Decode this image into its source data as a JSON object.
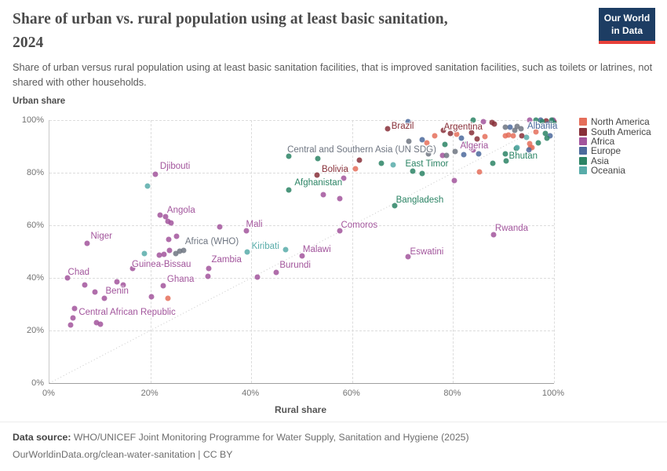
{
  "header": {
    "title_line1": "Share of urban vs. rural population using at least basic sanitation,",
    "title_line2": "2024",
    "logo_line1": "Our World",
    "logo_line2": "in Data"
  },
  "subtitle": "Share of urban versus rural population using at least basic sanitation facilities, that is improved sanitation facilities, such as toilets or latrines, not shared with other households.",
  "chart_data": {
    "type": "scatter",
    "xlabel": "Rural share",
    "ylabel": "Urban share",
    "xlim": [
      0,
      100
    ],
    "ylim": [
      0,
      100
    ],
    "grid": true,
    "gridlines": [
      20,
      40,
      60,
      80,
      100
    ],
    "diagonal_line": true,
    "x_ticks": [
      {
        "v": 0,
        "label": "0%"
      },
      {
        "v": 20,
        "label": "20%"
      },
      {
        "v": 40,
        "label": "40%"
      },
      {
        "v": 60,
        "label": "60%"
      },
      {
        "v": 80,
        "label": "80%"
      },
      {
        "v": 100,
        "label": "100%"
      }
    ],
    "y_ticks": [
      {
        "v": 0,
        "label": "0%"
      },
      {
        "v": 20,
        "label": "20%"
      },
      {
        "v": 40,
        "label": "40%"
      },
      {
        "v": 60,
        "label": "60%"
      },
      {
        "v": 80,
        "label": "80%"
      },
      {
        "v": 100,
        "label": "100%"
      }
    ],
    "series": [
      {
        "id": "northAmerica",
        "name": "North America",
        "color": "#E56E5A",
        "points": [
          [
            23.5,
            32.2
          ],
          [
            60.6,
            81.5
          ],
          [
            85.2,
            80.3
          ],
          [
            76.4,
            94
          ],
          [
            80.7,
            94.6
          ],
          [
            86.3,
            93.7
          ],
          [
            74.8,
            91.3
          ],
          [
            80.2,
            97.6
          ],
          [
            90.4,
            94
          ],
          [
            91,
            94.3
          ],
          [
            91.9,
            94
          ],
          [
            95.2,
            91
          ],
          [
            95.6,
            89.6
          ],
          [
            95.3,
            89.6
          ],
          [
            96.5,
            95.5
          ]
        ]
      },
      {
        "id": "southAmerica",
        "name": "South America",
        "color": "#883039",
        "points": [
          [
            67,
            96.8
          ],
          [
            78,
            96.2
          ],
          [
            53,
            79.1
          ],
          [
            61.4,
            84.8
          ],
          [
            79.5,
            94.9
          ],
          [
            83.7,
            95.2
          ],
          [
            84.8,
            92.8
          ],
          [
            87.7,
            99
          ],
          [
            88.2,
            98.5
          ],
          [
            93.6,
            94
          ],
          [
            98.4,
            99.6
          ],
          [
            100,
            99.3
          ],
          [
            99,
            98.3
          ]
        ]
      },
      {
        "id": "africa",
        "name": "Africa",
        "color": "#A2559C",
        "points": [
          [
            21,
            79.5
          ],
          [
            23,
            63.3
          ],
          [
            21.9,
            63.9
          ],
          [
            23.5,
            61.5
          ],
          [
            24.1,
            60.9
          ],
          [
            7.5,
            53
          ],
          [
            39,
            58
          ],
          [
            50,
            48.5
          ],
          [
            45,
            42
          ],
          [
            31.5,
            43.5
          ],
          [
            31.4,
            40.6
          ],
          [
            22.5,
            37
          ],
          [
            16.5,
            43.5
          ],
          [
            3.5,
            40
          ],
          [
            9,
            34.5
          ],
          [
            5,
            28.5
          ],
          [
            4.7,
            24.8
          ],
          [
            4.2,
            22.1
          ],
          [
            9.3,
            23
          ],
          [
            10.1,
            22.4
          ],
          [
            57.5,
            58
          ],
          [
            71,
            48
          ],
          [
            88,
            56.5
          ],
          [
            7,
            37.3
          ],
          [
            10.9,
            32.2
          ],
          [
            13.4,
            38.5
          ],
          [
            14.6,
            37.3
          ],
          [
            20.2,
            32.8
          ],
          [
            21.8,
            48.7
          ],
          [
            22.7,
            49
          ],
          [
            23.6,
            54.6
          ],
          [
            25.2,
            55.8
          ],
          [
            23.8,
            50.4
          ],
          [
            33.7,
            59.4
          ],
          [
            41.2,
            40.3
          ],
          [
            58.3,
            77.9
          ],
          [
            54.3,
            71.6
          ],
          [
            57.5,
            70.1
          ],
          [
            80.2,
            77
          ],
          [
            84,
            88.7
          ],
          [
            77.9,
            86.6
          ],
          [
            86,
            99.4
          ],
          [
            95.2,
            100
          ],
          [
            99.8,
            100
          ]
        ]
      },
      {
        "id": "europe",
        "name": "Europe",
        "color": "#4C6A9C",
        "points": [
          [
            71,
            99.5
          ],
          [
            81.7,
            93.1
          ],
          [
            73.9,
            92.5
          ],
          [
            85.1,
            87.2
          ],
          [
            82.1,
            86.9
          ],
          [
            95,
            88.7
          ],
          [
            91.3,
            97.3
          ],
          [
            97.4,
            100
          ],
          [
            99.2,
            97.6
          ],
          [
            98.8,
            98.5
          ],
          [
            99.7,
            99.4
          ],
          [
            99.5,
            98.2
          ],
          [
            99.2,
            94
          ]
        ]
      },
      {
        "id": "asia",
        "name": "Asia",
        "color": "#2C8465",
        "points": [
          [
            47.4,
            86.3
          ],
          [
            53.2,
            85.4
          ],
          [
            65.8,
            83.6
          ],
          [
            72,
            80.6
          ],
          [
            73.9,
            79.7
          ],
          [
            47.5,
            73.4
          ],
          [
            68.5,
            67.5
          ],
          [
            92.5,
            89.3
          ],
          [
            87.9,
            83.6
          ],
          [
            90.5,
            84.5
          ],
          [
            90.4,
            87.2
          ],
          [
            78.4,
            90.7
          ],
          [
            82.4,
            90.7
          ],
          [
            84,
            100
          ],
          [
            96.4,
            100
          ],
          [
            99.5,
            100
          ],
          [
            98.3,
            94.9
          ],
          [
            98.6,
            93.1
          ],
          [
            97.7,
            99.4
          ],
          [
            100,
            98.8
          ],
          [
            96.9,
            91.3
          ]
        ]
      },
      {
        "id": "oceania",
        "name": "Oceania",
        "color": "#58ACA9",
        "points": [
          [
            19.4,
            74.9
          ],
          [
            18.8,
            49.3
          ],
          [
            39.2,
            49.9
          ],
          [
            46.8,
            50.7
          ],
          [
            68.1,
            83
          ],
          [
            94.6,
            93.4
          ],
          [
            92.7,
            89.6
          ]
        ]
      },
      {
        "id": "regions",
        "name": "",
        "color": "#6E7581",
        "points": [
          [
            25,
            49.3
          ],
          [
            25.8,
            50.1
          ],
          [
            26.6,
            50.4
          ],
          [
            78.7,
            86.6
          ],
          [
            80.4,
            88.1
          ],
          [
            75.1,
            87.2
          ],
          [
            71.2,
            91.9
          ],
          [
            90.4,
            97.3
          ],
          [
            92.7,
            97.6
          ],
          [
            93.5,
            96.7
          ],
          [
            92.2,
            96.1
          ]
        ]
      }
    ],
    "point_labels": [
      {
        "text": "Brazil",
        "series": "southAmerica",
        "x": 70,
        "y": 97.6
      },
      {
        "text": "Argentina",
        "series": "southAmerica",
        "x": 82,
        "y": 97.2
      },
      {
        "text": "Albania",
        "series": "europe",
        "x": 97.7,
        "y": 97.6
      },
      {
        "text": "Algeria",
        "series": "africa",
        "x": 84.2,
        "y": 90.2
      },
      {
        "text": "Bhutan",
        "series": "asia",
        "x": 93.9,
        "y": 86.4
      },
      {
        "text": "East Timor",
        "series": "asia",
        "x": 74.8,
        "y": 83.2
      },
      {
        "text": "Central and Southern Asia (UN SDG)",
        "series": "regions",
        "x": 61.9,
        "y": 88.8
      },
      {
        "text": "Bolivia",
        "series": "southAmerica",
        "x": 56.6,
        "y": 81.3
      },
      {
        "text": "Afghanistan",
        "series": "asia",
        "x": 53.3,
        "y": 76
      },
      {
        "text": "Bangladesh",
        "series": "asia",
        "x": 73.4,
        "y": 69.5
      },
      {
        "text": "Djibouti",
        "series": "africa",
        "x": 24.9,
        "y": 82.5
      },
      {
        "text": "Angola",
        "series": "africa",
        "x": 26.1,
        "y": 65.8
      },
      {
        "text": "Niger",
        "series": "africa",
        "x": 10.3,
        "y": 55.8
      },
      {
        "text": "Mali",
        "series": "africa",
        "x": 40.6,
        "y": 60.4
      },
      {
        "text": "Africa (WHO)",
        "series": "regions",
        "x": 32.2,
        "y": 53.7
      },
      {
        "text": "Kiribati",
        "series": "oceania",
        "x": 42.8,
        "y": 51.9
      },
      {
        "text": "Malawi",
        "series": "africa",
        "x": 53,
        "y": 50.8
      },
      {
        "text": "Burundi",
        "series": "africa",
        "x": 48.7,
        "y": 44.7
      },
      {
        "text": "Zambia",
        "series": "africa",
        "x": 35.1,
        "y": 47
      },
      {
        "text": "Ghana",
        "series": "africa",
        "x": 26,
        "y": 39.3
      },
      {
        "text": "Guinea-Bissau",
        "series": "africa",
        "x": 22.2,
        "y": 45.2
      },
      {
        "text": "Chad",
        "series": "africa",
        "x": 5.8,
        "y": 42.2
      },
      {
        "text": "Benin",
        "series": "africa",
        "x": 13.4,
        "y": 34.8
      },
      {
        "text": "Central African Republic",
        "series": "africa",
        "x": 15.4,
        "y": 26.8
      },
      {
        "text": "Comoros",
        "series": "africa",
        "x": 61.4,
        "y": 60
      },
      {
        "text": "Eswatini",
        "series": "africa",
        "x": 74.8,
        "y": 49.8
      },
      {
        "text": "Rwanda",
        "series": "africa",
        "x": 91.6,
        "y": 58.7
      }
    ]
  },
  "legend": {
    "items": [
      {
        "label": "North America",
        "color": "#E56E5A"
      },
      {
        "label": "South America",
        "color": "#883039"
      },
      {
        "label": "Africa",
        "color": "#A2559C"
      },
      {
        "label": "Europe",
        "color": "#4C6A9C"
      },
      {
        "label": "Asia",
        "color": "#2C8465"
      },
      {
        "label": "Oceania",
        "color": "#58ACA9"
      }
    ]
  },
  "footer": {
    "source_label": "Data source:",
    "source_text": " WHO/UNICEF Joint Monitoring Programme for Water Supply, Sanitation and Hygiene (2025)",
    "link_line": "OurWorldinData.org/clean-water-sanitation | CC BY"
  }
}
